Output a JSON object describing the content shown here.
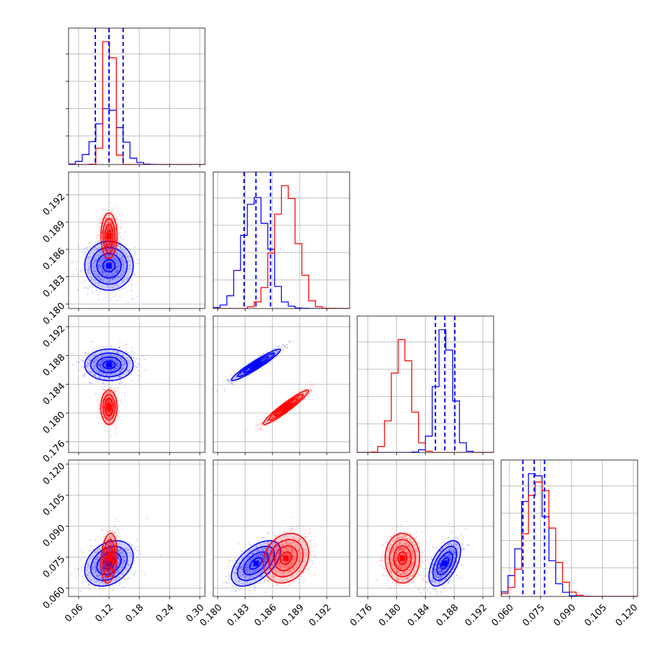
{
  "chart_data": {
    "type": "corner",
    "series": [
      {
        "color": "#0000ff",
        "quantile_lines": true
      },
      {
        "color": "#ff0000",
        "quantile_lines": false
      }
    ],
    "params": [
      {
        "range": [
          0.04,
          0.31
        ],
        "ticks": [
          "0.06",
          "0.12",
          "0.18",
          "0.24",
          "0.30"
        ],
        "tick_values": [
          0.06,
          0.12,
          0.18,
          0.24,
          0.3
        ]
      },
      {
        "range": [
          0.1795,
          0.1945
        ],
        "ticks": [
          "0.180",
          "0.183",
          "0.186",
          "0.189",
          "0.192"
        ],
        "tick_values": [
          0.18,
          0.183,
          0.186,
          0.189,
          0.192
        ]
      },
      {
        "range": [
          0.1745,
          0.1935
        ],
        "ticks": [
          "0.176",
          "0.180",
          "0.184",
          "0.188",
          "0.192"
        ],
        "tick_values": [
          0.176,
          0.18,
          0.184,
          0.188,
          0.192
        ]
      },
      {
        "range": [
          0.056,
          0.122
        ],
        "ticks": [
          "0.060",
          "0.075",
          "0.090",
          "0.105",
          "0.120"
        ],
        "tick_values": [
          0.06,
          0.075,
          0.09,
          0.105,
          0.12
        ]
      }
    ],
    "blue": {
      "means": [
        0.12,
        0.1842,
        0.1867,
        0.072
      ],
      "sigmas": [
        0.024,
        0.00135,
        0.0011,
        0.0055
      ],
      "quantiles": [
        [
          0.093,
          0.12,
          0.148
        ],
        [
          0.1829,
          0.1842,
          0.1858
        ],
        [
          0.1854,
          0.1867,
          0.1881
        ],
        [
          0.0665,
          0.072,
          0.077
        ]
      ]
    },
    "red": {
      "means": [
        0.12,
        0.1875,
        0.1808,
        0.0745
      ],
      "sigmas": [
        0.008,
        0.00125,
        0.0012,
        0.006
      ]
    },
    "grid": true
  }
}
